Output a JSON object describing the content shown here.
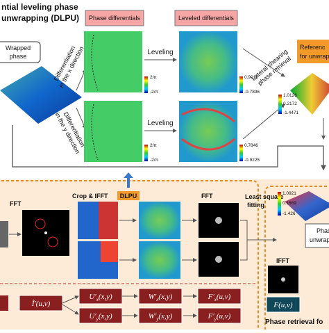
{
  "header": {
    "title": [
      "ntial leveling phase",
      "unwrapping (DLPU)"
    ]
  },
  "top": {
    "wrapped_phase": [
      "Wrapped",
      "phase"
    ],
    "phase_differentials": "Phase differentials",
    "leveled_differentials": "Leveled differentials",
    "diff_x": [
      "Differentiation",
      "in the x direction"
    ],
    "diff_y": [
      "Differentiation",
      "in the y direction"
    ],
    "leveling": [
      "Leveling",
      "Leveling"
    ],
    "lateral": [
      "Lateral shearing",
      "phase retrieval"
    ],
    "reference": [
      "Referenc",
      "for unwrap"
    ],
    "colorbars": [
      [
        "2/π",
        "-2/π"
      ],
      [
        "2/π",
        "-2/π"
      ],
      [
        "0.9011",
        "-0.7896"
      ],
      [
        "0.7846",
        "-0.9225"
      ],
      [
        "1.0126",
        "0.2172",
        "-1.4471"
      ]
    ]
  },
  "bottom": {
    "fft_left": "FFT",
    "crop_ifft": "Crop & IFFT",
    "dlpu": "DLPU",
    "fft_mid": "FFT",
    "least_square": [
      "Least square",
      "fitting"
    ],
    "colorbar": [
      "1.0921",
      "0.1669",
      "-1.426"
    ],
    "phase_unwrap": [
      "Phas",
      "unwrap"
    ],
    "ifft": "IFFT",
    "retrieval": "Phase retrieval fo",
    "formulas": [
      {
        "base": "Ĩ′",
        "sub": "",
        "args": "(u,v)"
      },
      {
        "base": "U′",
        "sub": "x",
        "args": "(x,y)"
      },
      {
        "base": "U′",
        "sub": "y",
        "args": "(x,y)"
      },
      {
        "base": "W′",
        "sub": "x",
        "args": "(x,y)"
      },
      {
        "base": "W′",
        "sub": "y",
        "args": "(x,y)"
      },
      {
        "base": "F′",
        "sub": "x",
        "args": "(u,v)"
      },
      {
        "base": "F′",
        "sub": "y",
        "args": "(u,v)"
      },
      {
        "base": "F",
        "sub": "",
        "args": "(u,v)"
      }
    ]
  }
}
